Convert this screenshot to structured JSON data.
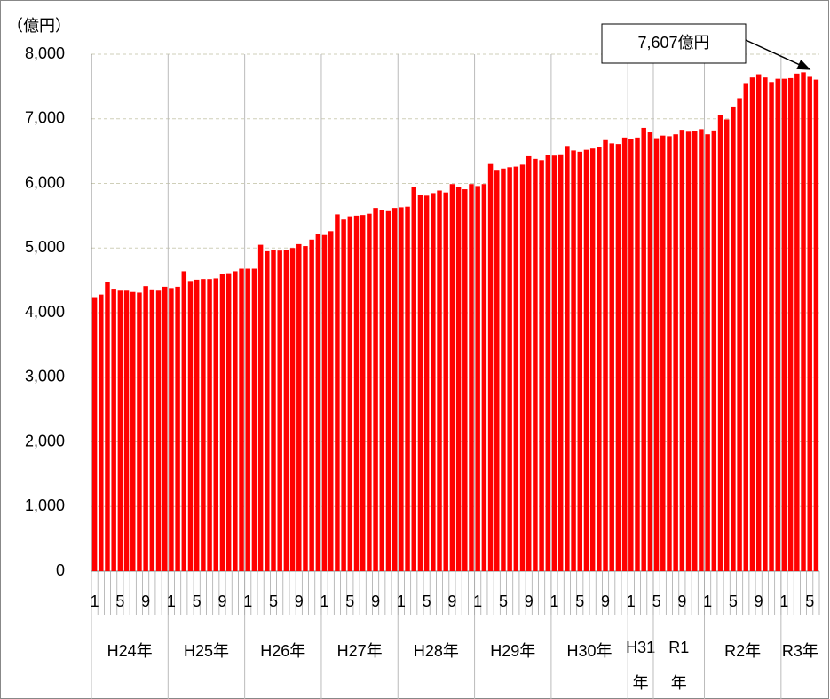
{
  "chart_data": {
    "type": "bar",
    "y_axis_label": "（億円）",
    "annotation": "7,607億円",
    "color": "#ff0000",
    "grid": true,
    "ylim": [
      0,
      8000
    ],
    "yticks": [
      0,
      {
        "value": 1000,
        "label": "1,000"
      },
      {
        "value": 2000,
        "label": "2,000"
      },
      {
        "value": 3000,
        "label": "3,000"
      },
      {
        "value": 4000,
        "label": "4,000"
      },
      {
        "value": 5000,
        "label": "5,000"
      },
      {
        "value": 6000,
        "label": "6,000"
      },
      {
        "value": 7000,
        "label": "7,000"
      },
      {
        "value": 8000,
        "label": "8,000"
      }
    ],
    "x_groups": [
      "H24年",
      "H25年",
      "H26年",
      "H27年",
      "H28年",
      "H29年",
      "H30年",
      [
        "H31",
        "年"
      ],
      [
        "R1",
        "年"
      ],
      "R2年",
      "R3年"
    ],
    "categories": [
      1,
      null,
      null,
      null,
      5,
      null,
      null,
      null,
      9,
      null,
      null,
      null,
      1,
      null,
      null,
      null,
      5,
      null,
      null,
      null,
      9,
      null,
      null,
      null,
      1,
      null,
      null,
      null,
      5,
      null,
      null,
      null,
      9,
      null,
      null,
      null,
      1,
      null,
      null,
      null,
      5,
      null,
      null,
      null,
      9,
      null,
      null,
      null,
      1,
      null,
      null,
      null,
      5,
      null,
      null,
      null,
      9,
      null,
      null,
      null,
      1,
      null,
      null,
      null,
      5,
      null,
      null,
      null,
      9,
      null,
      null,
      null,
      1,
      null,
      null,
      null,
      5,
      null,
      null,
      null,
      9,
      null,
      null,
      null,
      1,
      null,
      null,
      null,
      5,
      null,
      null,
      null,
      9,
      null,
      null,
      null,
      1,
      null,
      null,
      null,
      5,
      null,
      null,
      null,
      9,
      null,
      null,
      null,
      1,
      null,
      null,
      null,
      5,
      null
    ],
    "values": [
      4240,
      4280,
      4470,
      4370,
      4340,
      4340,
      4320,
      4310,
      4410,
      4360,
      4340,
      4400,
      4380,
      4400,
      4640,
      4490,
      4510,
      4520,
      4520,
      4530,
      4600,
      4610,
      4640,
      4680,
      4680,
      4680,
      5050,
      4950,
      4970,
      4960,
      4970,
      5000,
      5060,
      5030,
      5130,
      5210,
      5200,
      5260,
      5520,
      5440,
      5490,
      5500,
      5510,
      5530,
      5620,
      5590,
      5570,
      5620,
      5630,
      5640,
      5950,
      5820,
      5810,
      5850,
      5890,
      5860,
      5990,
      5940,
      5910,
      5990,
      5960,
      5990,
      6300,
      6210,
      6230,
      6250,
      6260,
      6290,
      6420,
      6380,
      6360,
      6440,
      6430,
      6450,
      6580,
      6510,
      6490,
      6520,
      6540,
      6560,
      6670,
      6620,
      6610,
      6710,
      6690,
      6710,
      6860,
      6790,
      6700,
      6740,
      6730,
      6760,
      6830,
      6800,
      6810,
      6840,
      6760,
      6820,
      7060,
      6990,
      7190,
      7320,
      7540,
      7640,
      7690,
      7640,
      7570,
      7620,
      7620,
      7630,
      7700,
      7720,
      7650,
      7607
    ]
  }
}
